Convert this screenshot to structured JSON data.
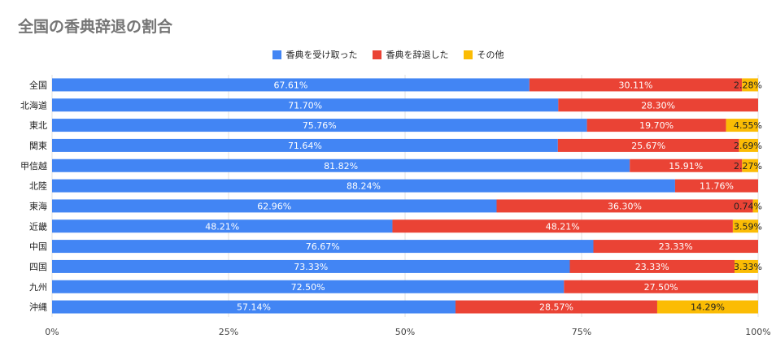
{
  "chart_data": {
    "type": "bar",
    "orientation": "horizontal",
    "stacked": "percent",
    "title": "全国の香典辞退の割合",
    "categories": [
      "全国",
      "北海道",
      "東北",
      "関東",
      "甲信越",
      "北陸",
      "東海",
      "近畿",
      "中国",
      "四国",
      "九州",
      "沖縄"
    ],
    "series": [
      {
        "name": "香典を受け取った",
        "color": "#4285F4",
        "values": [
          67.61,
          71.7,
          75.76,
          71.64,
          81.82,
          88.24,
          62.96,
          48.21,
          76.67,
          73.33,
          72.5,
          57.14
        ]
      },
      {
        "name": "香典を辞退した",
        "color": "#EA4335",
        "values": [
          30.11,
          28.3,
          19.7,
          25.67,
          15.91,
          11.76,
          36.3,
          48.21,
          23.33,
          23.33,
          27.5,
          28.57
        ]
      },
      {
        "name": "その他",
        "color": "#FBBC04",
        "values": [
          2.28,
          null,
          4.55,
          2.69,
          2.27,
          null,
          0.74,
          3.59,
          null,
          3.33,
          null,
          14.29
        ]
      }
    ],
    "data_labels": [
      [
        "67.61%",
        "71.70%",
        "75.76%",
        "71.64%",
        "81.82%",
        "88.24%",
        "62.96%",
        "48.21%",
        "76.67%",
        "73.33%",
        "72.50%",
        "57.14%"
      ],
      [
        "30.11%",
        "28.30%",
        "19.70%",
        "25.67%",
        "15.91%",
        "11.76%",
        "36.30%",
        "48.21%",
        "23.33%",
        "23.33%",
        "27.50%",
        "28.57%"
      ],
      [
        "2.28%",
        "",
        "4.55%",
        "2.69%",
        "2.27%",
        "",
        "0.74%",
        "3.59%",
        "",
        "3.33%",
        "",
        "14.29%"
      ]
    ],
    "xlim": [
      0,
      100
    ],
    "xticks": [
      "0%",
      "25%",
      "50%",
      "75%",
      "100%"
    ],
    "xtick_values": [
      0,
      25,
      50,
      75,
      100
    ],
    "grid": true,
    "legend_position": "top"
  }
}
